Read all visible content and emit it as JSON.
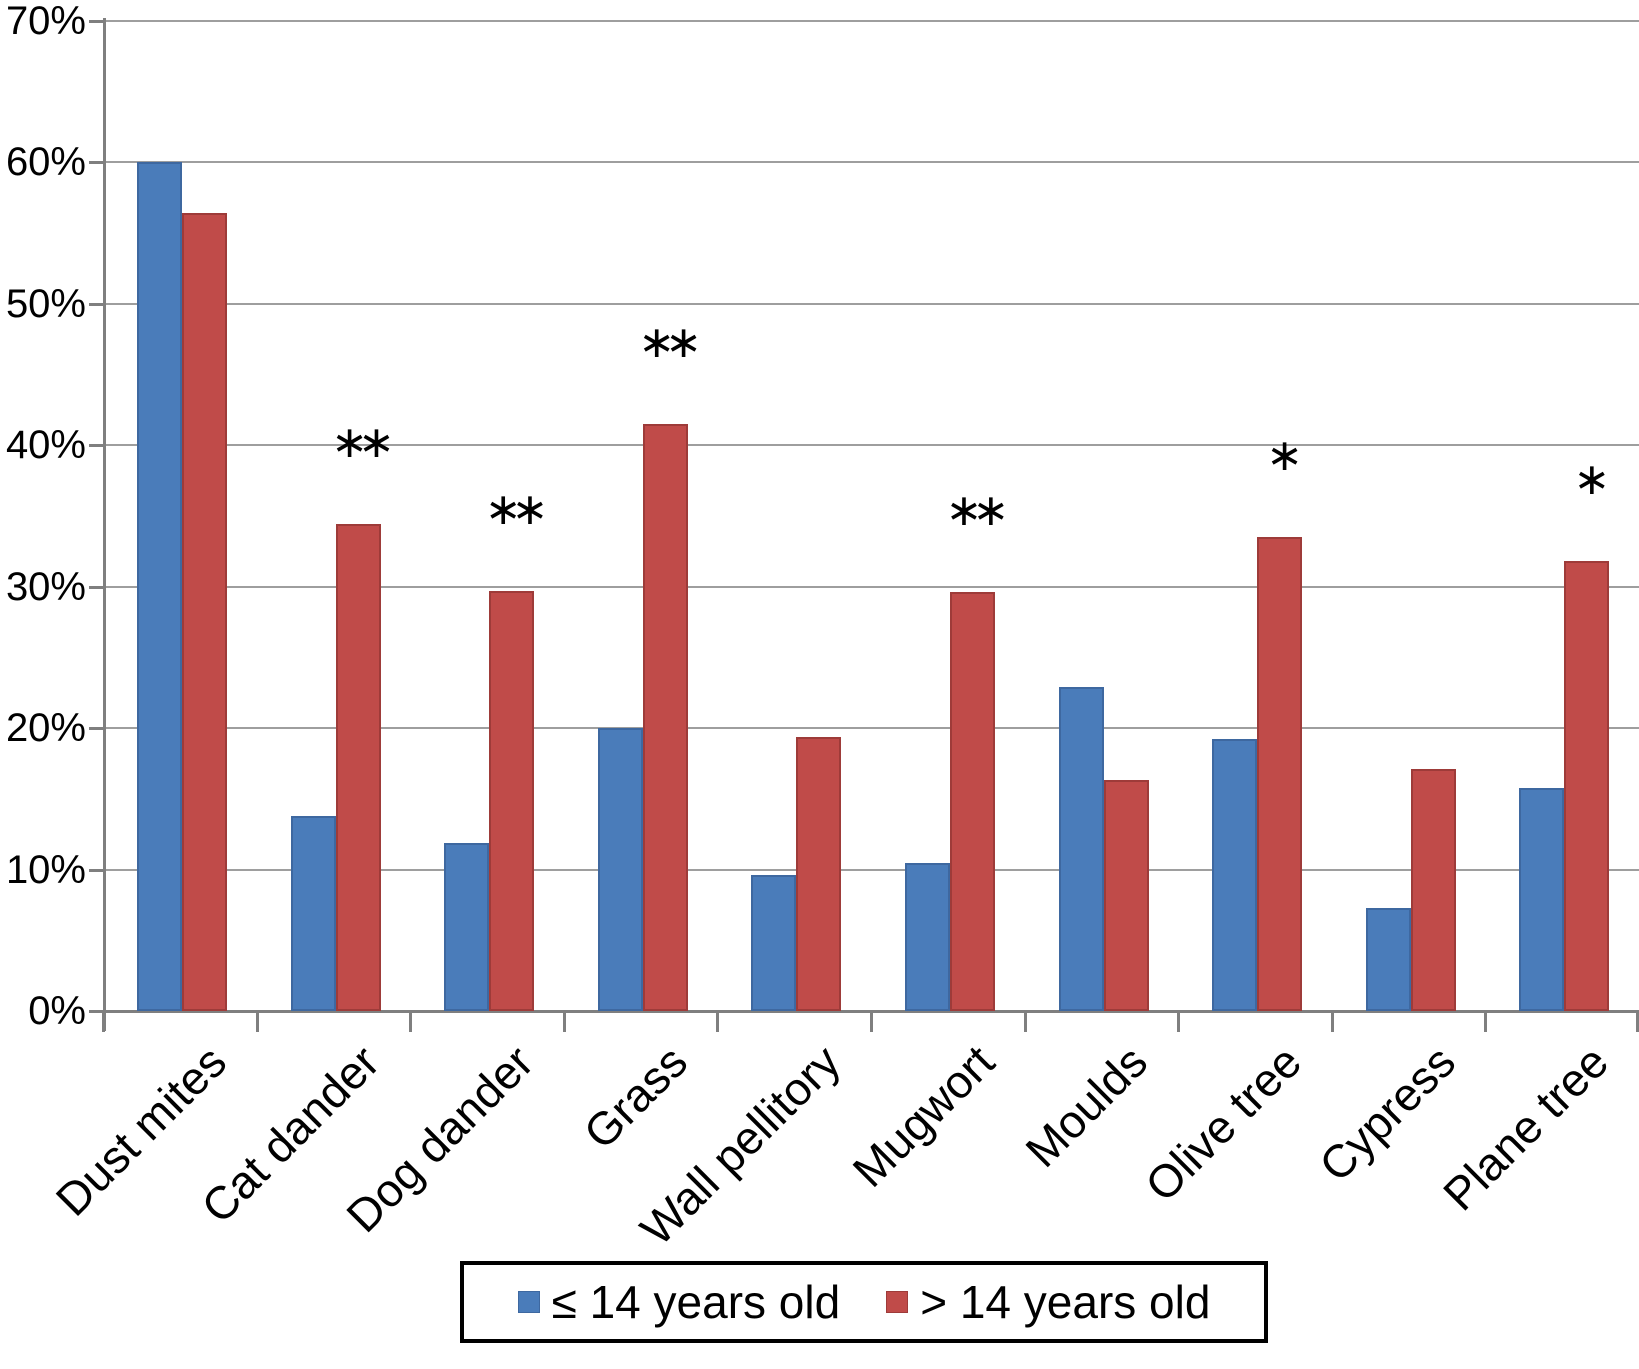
{
  "chart_data": {
    "type": "bar",
    "title": "",
    "categories": [
      "Dust mites",
      "Cat dander",
      "Dog dander",
      "Grass",
      "Wall pellitory",
      "Mugwort",
      "Moulds",
      "Olive tree",
      "Cypress",
      "Plane tree"
    ],
    "series": [
      {
        "name": "≤ 14 years old",
        "color": "#4A7CBA",
        "border_color": "#3E68A0",
        "values": [
          60,
          13.8,
          11.9,
          20,
          9.6,
          10.5,
          22.9,
          19.2,
          7.3,
          15.8
        ]
      },
      {
        "name": "> 14 years old",
        "color": "#C04B49",
        "border_color": "#9E3B39",
        "values": [
          56.4,
          34.4,
          29.7,
          41.5,
          19.4,
          29.6,
          16.3,
          33.5,
          17.1,
          31.8
        ]
      }
    ],
    "significance_markers": [
      "",
      "**",
      "**",
      "**",
      "",
      "**",
      "",
      "*",
      "",
      "*"
    ],
    "xlabel": "",
    "ylabel": "",
    "y_axis": {
      "min": 0,
      "max": 70,
      "step": 10,
      "tick_labels": [
        "0%",
        "10%",
        "20%",
        "30%",
        "40%",
        "50%",
        "60%",
        "70%"
      ],
      "format": "percent"
    },
    "grid": true,
    "legend_position": "bottom"
  }
}
